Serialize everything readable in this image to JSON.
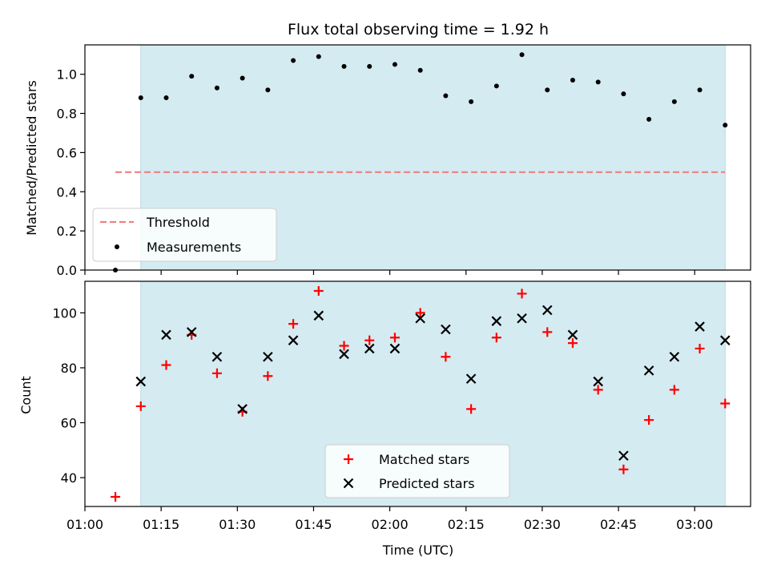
{
  "chart_data": [
    {
      "type": "scatter",
      "title": "Flux total observing time = 1.92 h",
      "xlabel": "",
      "ylabel": "Matched/Predicted stars",
      "xlim": [
        "01:00",
        "03:11"
      ],
      "ylim": [
        0,
        1.15
      ],
      "yticks": [
        0.0,
        0.2,
        0.4,
        0.6,
        0.8,
        1.0
      ],
      "ytick_labels": [
        "0.0",
        "0.2",
        "0.4",
        "0.6",
        "0.8",
        "1.0"
      ],
      "highlight_span": {
        "x": [
          "01:11",
          "03:06"
        ],
        "color": "#d4ebf1"
      },
      "threshold": {
        "name": "Threshold",
        "y": 0.5,
        "x": [
          "01:06",
          "03:06"
        ],
        "color": "#f08080",
        "style": "dashed"
      },
      "series": [
        {
          "name": "Measurements",
          "marker": "dot",
          "color": "#000000",
          "x": [
            "01:06",
            "01:11",
            "01:16",
            "01:21",
            "01:26",
            "01:31",
            "01:36",
            "01:41",
            "01:46",
            "01:51",
            "01:56",
            "02:01",
            "02:06",
            "02:11",
            "02:16",
            "02:21",
            "02:26",
            "02:31",
            "02:36",
            "02:41",
            "02:46",
            "02:51",
            "02:56",
            "03:01",
            "03:06"
          ],
          "y": [
            0.0,
            0.88,
            0.88,
            0.99,
            0.93,
            0.98,
            0.92,
            1.07,
            1.09,
            1.04,
            1.04,
            1.05,
            1.02,
            0.89,
            0.86,
            0.94,
            1.1,
            0.92,
            0.97,
            0.96,
            0.9,
            0.77,
            0.86,
            0.92,
            0.74
          ]
        }
      ],
      "legend": {
        "position": "lower-left",
        "entries": [
          "Threshold",
          "Measurements"
        ]
      },
      "grid": false
    },
    {
      "type": "scatter",
      "title": "",
      "xlabel": "Time (UTC)",
      "ylabel": "Count",
      "xlim": [
        "01:00",
        "03:11"
      ],
      "ylim": [
        29.5,
        111.5
      ],
      "xticks": [
        "01:00",
        "01:15",
        "01:30",
        "01:45",
        "02:00",
        "02:15",
        "02:30",
        "02:45",
        "03:00"
      ],
      "yticks": [
        40,
        60,
        80,
        100
      ],
      "ytick_labels": [
        "40",
        "60",
        "80",
        "100"
      ],
      "highlight_span": {
        "x": [
          "01:11",
          "03:06"
        ],
        "color": "#d4ebf1"
      },
      "series": [
        {
          "name": "Matched stars",
          "marker": "plus",
          "color": "#ff0000",
          "x": [
            "01:06",
            "01:11",
            "01:16",
            "01:21",
            "01:26",
            "01:31",
            "01:36",
            "01:41",
            "01:46",
            "01:51",
            "01:56",
            "02:01",
            "02:06",
            "02:11",
            "02:16",
            "02:21",
            "02:26",
            "02:31",
            "02:36",
            "02:41",
            "02:46",
            "02:51",
            "02:56",
            "03:01",
            "03:06"
          ],
          "y": [
            33,
            66,
            81,
            92,
            78,
            64,
            77,
            96,
            108,
            88,
            90,
            91,
            100,
            84,
            65,
            91,
            107,
            93,
            89,
            72,
            43,
            61,
            72,
            87,
            67
          ]
        },
        {
          "name": "Predicted stars",
          "marker": "x",
          "color": "#000000",
          "x": [
            "01:11",
            "01:16",
            "01:21",
            "01:26",
            "01:31",
            "01:36",
            "01:41",
            "01:46",
            "01:51",
            "01:56",
            "02:01",
            "02:06",
            "02:11",
            "02:16",
            "02:21",
            "02:26",
            "02:31",
            "02:36",
            "02:41",
            "02:46",
            "02:51",
            "02:56",
            "03:01",
            "03:06"
          ],
          "y": [
            75,
            92,
            93,
            84,
            65,
            84,
            90,
            99,
            85,
            87,
            87,
            98,
            94,
            76,
            97,
            98,
            101,
            92,
            75,
            48,
            79,
            84,
            95,
            90
          ]
        }
      ],
      "legend": {
        "position": "lower-center",
        "entries": [
          "Matched stars",
          "Predicted stars"
        ]
      },
      "grid": false
    }
  ]
}
